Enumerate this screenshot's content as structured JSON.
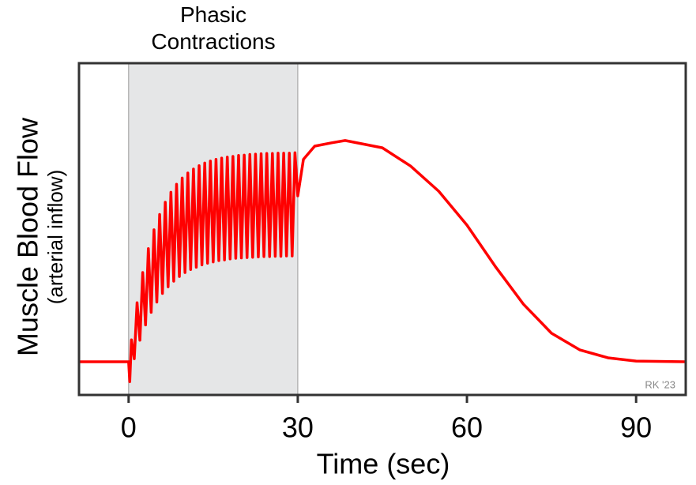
{
  "chart_data": {
    "type": "line",
    "x_label": "Time (sec)",
    "y_label": [
      "Muscle Blood Flow",
      "(arterial inflow)"
    ],
    "annotation": "Phasic Contractions",
    "shaded_region": [
      0,
      30
    ],
    "credit": "RK '23",
    "xlim": [
      -8.8,
      98.8
    ],
    "xticks": [
      0,
      30,
      60,
      90
    ],
    "ylim": [
      0,
      100
    ],
    "series": [
      {
        "color": "#ff0000",
        "x": [
          -8.8,
          0,
          0.2,
          0.5,
          1,
          1.5,
          2,
          2.5,
          3,
          3.5,
          4,
          4.5,
          5,
          5.5,
          6,
          6.5,
          7,
          7.5,
          8,
          8.5,
          9,
          9.5,
          10,
          10.5,
          11,
          11.5,
          12,
          12.5,
          13,
          13.5,
          14,
          14.5,
          15,
          15.5,
          16,
          16.5,
          17,
          17.5,
          18,
          18.5,
          19,
          19.5,
          20,
          20.5,
          21,
          21.5,
          22,
          22.5,
          23,
          23.5,
          24,
          24.5,
          25,
          25.5,
          26,
          26.5,
          27,
          27.5,
          28,
          28.5,
          29,
          29.5,
          30,
          31,
          33,
          36,
          38.4,
          45,
          50,
          55,
          60,
          65,
          70,
          75,
          80,
          85,
          90,
          98.8
        ],
        "values": [
          10,
          10,
          4,
          16.6,
          10.9,
          27.8,
          16.5,
          36.9,
          21.1,
          44.1,
          24.9,
          49.8,
          28.0,
          54.4,
          30.6,
          58.1,
          32.6,
          61.1,
          34.3,
          63.5,
          35.7,
          65.4,
          36.9,
          66.9,
          37.8,
          68.1,
          38.5,
          69.1,
          39.2,
          69.9,
          39.7,
          70.5,
          40.1,
          71.0,
          40.5,
          71.4,
          40.7,
          71.7,
          41.0,
          71.9,
          41.2,
          72.2,
          41.3,
          72.3,
          41.4,
          72.5,
          41.5,
          72.6,
          41.6,
          72.7,
          41.7,
          72.8,
          41.7,
          72.8,
          41.8,
          72.9,
          41.8,
          72.9,
          41.9,
          72.9,
          41.9,
          73.0,
          60,
          71,
          75,
          76,
          76.7,
          74.5,
          69,
          61.4,
          51.2,
          38.8,
          27.4,
          18.6,
          13.6,
          11.2,
          10.2,
          10
        ]
      }
    ]
  }
}
